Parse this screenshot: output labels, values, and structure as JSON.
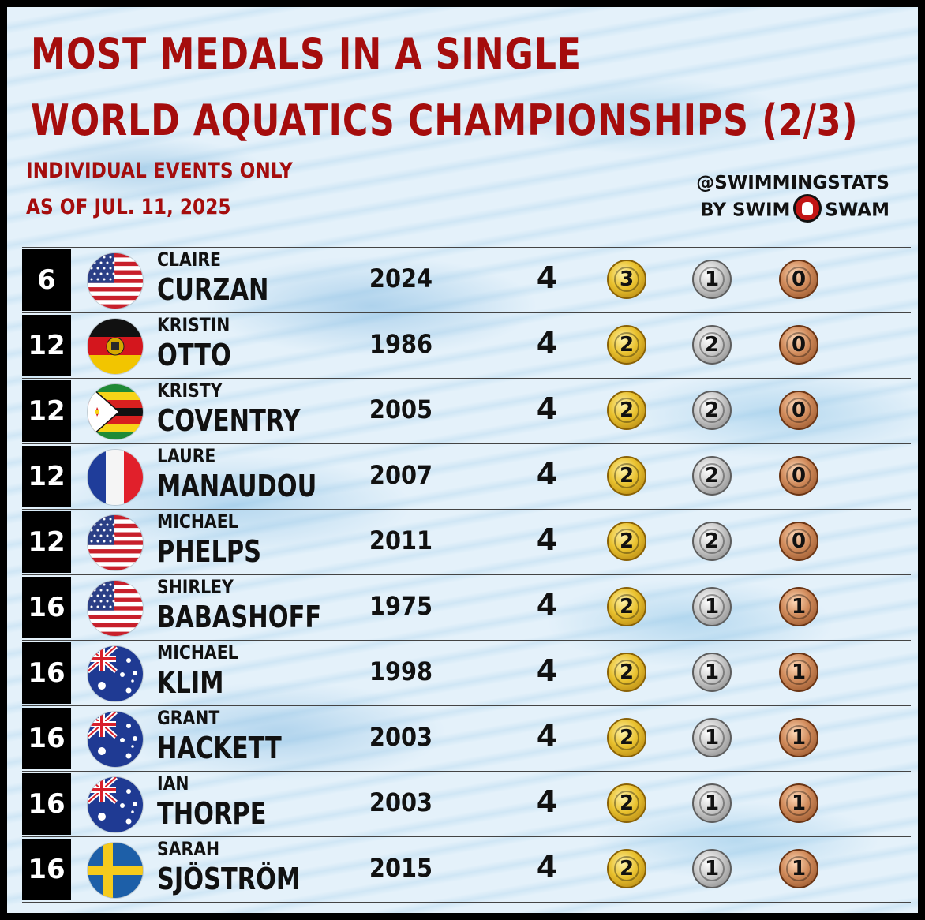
{
  "header": {
    "title_line1": "MOST MEDALS IN A SINGLE",
    "title_line2": "WORLD AQUATICS CHAMPIONSHIPS (2/3)",
    "subtitle_line1": "INDIVIDUAL EVENTS ONLY",
    "subtitle_line2": "AS OF JUL. 11, 2025",
    "handle": "@SWIMMINGSTATS",
    "by_left": "BY SWIM",
    "by_right": "SWAM"
  },
  "rows": [
    {
      "rank": "6",
      "flag": "usa",
      "first": "CLAIRE",
      "last": "CURZAN",
      "year": "2024",
      "total": "4",
      "gold": "3",
      "silver": "1",
      "bronze": "0"
    },
    {
      "rank": "12",
      "flag": "gdr",
      "first": "KRISTIN",
      "last": "OTTO",
      "year": "1986",
      "total": "4",
      "gold": "2",
      "silver": "2",
      "bronze": "0"
    },
    {
      "rank": "12",
      "flag": "zimbabwe",
      "first": "KRISTY",
      "last": "COVENTRY",
      "year": "2005",
      "total": "4",
      "gold": "2",
      "silver": "2",
      "bronze": "0"
    },
    {
      "rank": "12",
      "flag": "france",
      "first": "LAURE",
      "last": "MANAUDOU",
      "year": "2007",
      "total": "4",
      "gold": "2",
      "silver": "2",
      "bronze": "0"
    },
    {
      "rank": "12",
      "flag": "usa",
      "first": "MICHAEL",
      "last": "PHELPS",
      "year": "2011",
      "total": "4",
      "gold": "2",
      "silver": "2",
      "bronze": "0"
    },
    {
      "rank": "16",
      "flag": "usa",
      "first": "SHIRLEY",
      "last": "BABASHOFF",
      "year": "1975",
      "total": "4",
      "gold": "2",
      "silver": "1",
      "bronze": "1"
    },
    {
      "rank": "16",
      "flag": "australia",
      "first": "MICHAEL",
      "last": "KLIM",
      "year": "1998",
      "total": "4",
      "gold": "2",
      "silver": "1",
      "bronze": "1"
    },
    {
      "rank": "16",
      "flag": "australia",
      "first": "GRANT",
      "last": "HACKETT",
      "year": "2003",
      "total": "4",
      "gold": "2",
      "silver": "1",
      "bronze": "1"
    },
    {
      "rank": "16",
      "flag": "australia",
      "first": "IAN",
      "last": "THORPE",
      "year": "2003",
      "total": "4",
      "gold": "2",
      "silver": "1",
      "bronze": "1"
    },
    {
      "rank": "16",
      "flag": "sweden",
      "first": "SARAH",
      "last": "SJÖSTRÖM",
      "year": "2015",
      "total": "4",
      "gold": "2",
      "silver": "1",
      "bronze": "1"
    }
  ]
}
